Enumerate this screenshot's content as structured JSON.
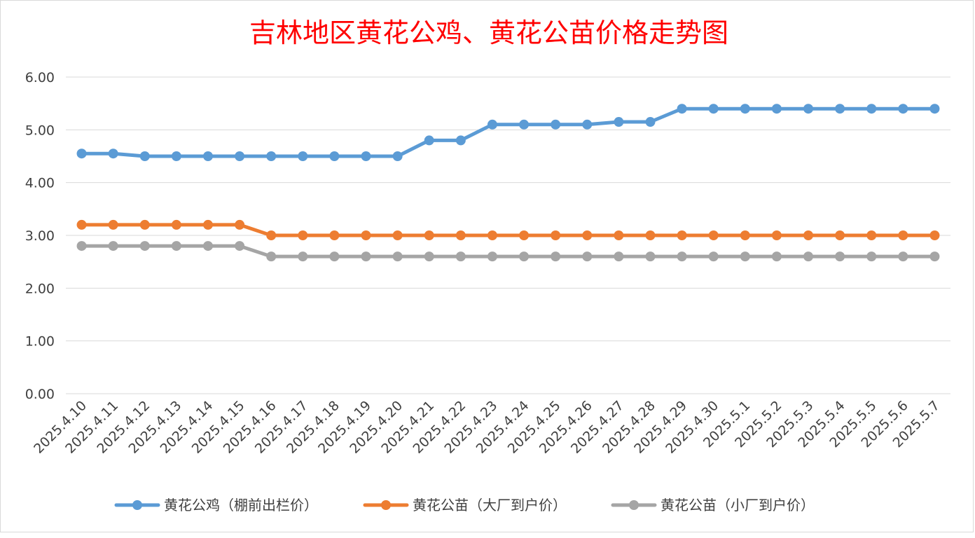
{
  "chart_data": {
    "type": "line",
    "title": "吉林地区黄花公鸡、黄花公苗价格走势图",
    "xlabel": "",
    "ylabel": "",
    "categories": [
      "2025.4.10",
      "2025.4.11",
      "2025.4.12",
      "2025.4.13",
      "2025.4.14",
      "2025.4.15",
      "2025.4.16",
      "2025.4.17",
      "2025.4.18",
      "2025.4.19",
      "2025.4.20",
      "2025.4.21",
      "2025.4.22",
      "2025.4.23",
      "2025.4.24",
      "2025.4.25",
      "2025.4.26",
      "2025.4.27",
      "2025.4.28",
      "2025.4.29",
      "2025.4.30",
      "2025.5.1",
      "2025.5.2",
      "2025.5.3",
      "2025.5.4",
      "2025.5.5",
      "2025.5.6",
      "2025.5.7"
    ],
    "ylim": [
      0,
      6
    ],
    "yticks": [
      "0.00",
      "1.00",
      "2.00",
      "3.00",
      "4.00",
      "5.00",
      "6.00"
    ],
    "grid": true,
    "legend_position": "bottom",
    "series": [
      {
        "name": "黄花公鸡（棚前出栏价）",
        "color": "#5b9bd5",
        "values": [
          4.55,
          4.55,
          4.5,
          4.5,
          4.5,
          4.5,
          4.5,
          4.5,
          4.5,
          4.5,
          4.5,
          4.8,
          4.8,
          5.1,
          5.1,
          5.1,
          5.1,
          5.15,
          5.15,
          5.4,
          5.4,
          5.4,
          5.4,
          5.4,
          5.4,
          5.4,
          5.4,
          5.4
        ]
      },
      {
        "name": "黄花公苗（大厂到户价）",
        "color": "#ed7d31",
        "values": [
          3.2,
          3.2,
          3.2,
          3.2,
          3.2,
          3.2,
          3.0,
          3.0,
          3.0,
          3.0,
          3.0,
          3.0,
          3.0,
          3.0,
          3.0,
          3.0,
          3.0,
          3.0,
          3.0,
          3.0,
          3.0,
          3.0,
          3.0,
          3.0,
          3.0,
          3.0,
          3.0,
          3.0
        ]
      },
      {
        "name": "黄花公苗（小厂到户价）",
        "color": "#a5a5a5",
        "values": [
          2.8,
          2.8,
          2.8,
          2.8,
          2.8,
          2.8,
          2.6,
          2.6,
          2.6,
          2.6,
          2.6,
          2.6,
          2.6,
          2.6,
          2.6,
          2.6,
          2.6,
          2.6,
          2.6,
          2.6,
          2.6,
          2.6,
          2.6,
          2.6,
          2.6,
          2.6,
          2.6,
          2.6
        ]
      }
    ]
  },
  "colors": {
    "title": "#ff0000",
    "grid": "#d9d9d9",
    "text": "#404040"
  }
}
